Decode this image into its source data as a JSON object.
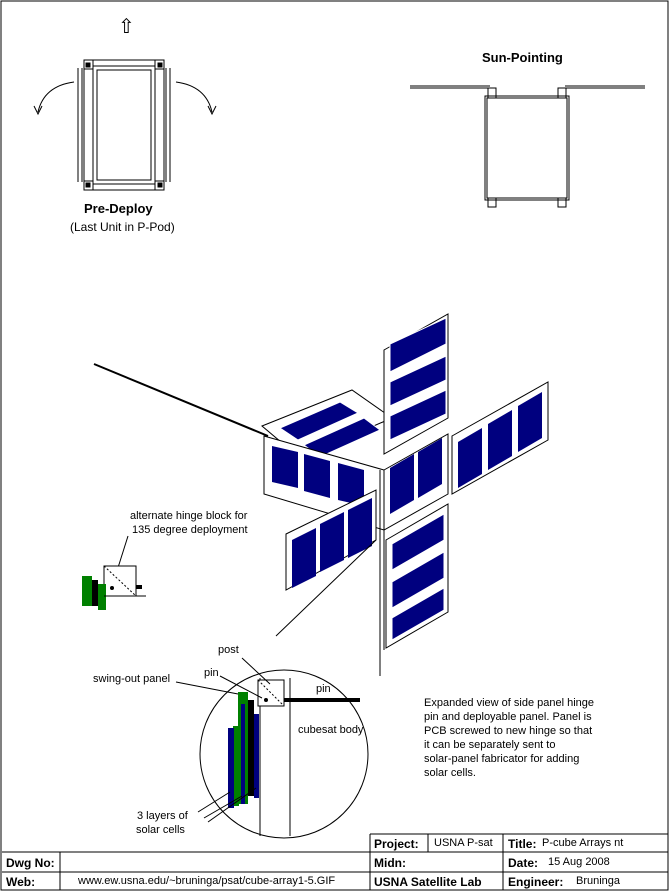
{
  "arrow_up": "⇧",
  "pre_deploy": {
    "title": "Pre-Deploy",
    "subtitle": "(Last Unit in P-Pod)"
  },
  "sun_pointing": {
    "title": "Sun-Pointing"
  },
  "hinge_note": {
    "line1": "alternate hinge block for",
    "line2": "135 degree deployment"
  },
  "callouts": {
    "post": "post",
    "pin_left": "pin",
    "pin_right": "pin",
    "swing_out_panel": "swing-out panel",
    "cubesat_body": "cubesat body",
    "solar_layers_1": "3 layers of",
    "solar_layers_2": "solar cells"
  },
  "expanded_note": [
    "Expanded view of side panel hinge",
    "pin and deployable panel.  Panel is",
    "PCB screwed to new hinge so that",
    "it can be separately sent to",
    "solar-panel fabricator for adding",
    "solar cells."
  ],
  "title_block": {
    "project_label": "Project:",
    "project_value": "USNA P-sat",
    "title_label": "Title:",
    "title_value": "P-cube Arrays nt",
    "dwg_label": "Dwg No:",
    "dwg_value": "",
    "midn_label": "Midn:",
    "midn_value": "",
    "date_label": "Date:",
    "date_value": "15 Aug 2008",
    "web_label": "Web:",
    "web_value": "www.ew.usna.edu/~bruninga/psat/cube-array1-5.GIF",
    "lab_label": "USNA Satellite Lab",
    "engineer_label": "Engineer:",
    "engineer_value": "Bruninga"
  },
  "colors": {
    "solar_blue": "#00007f",
    "pcb_green": "#008000",
    "line": "#000000"
  }
}
